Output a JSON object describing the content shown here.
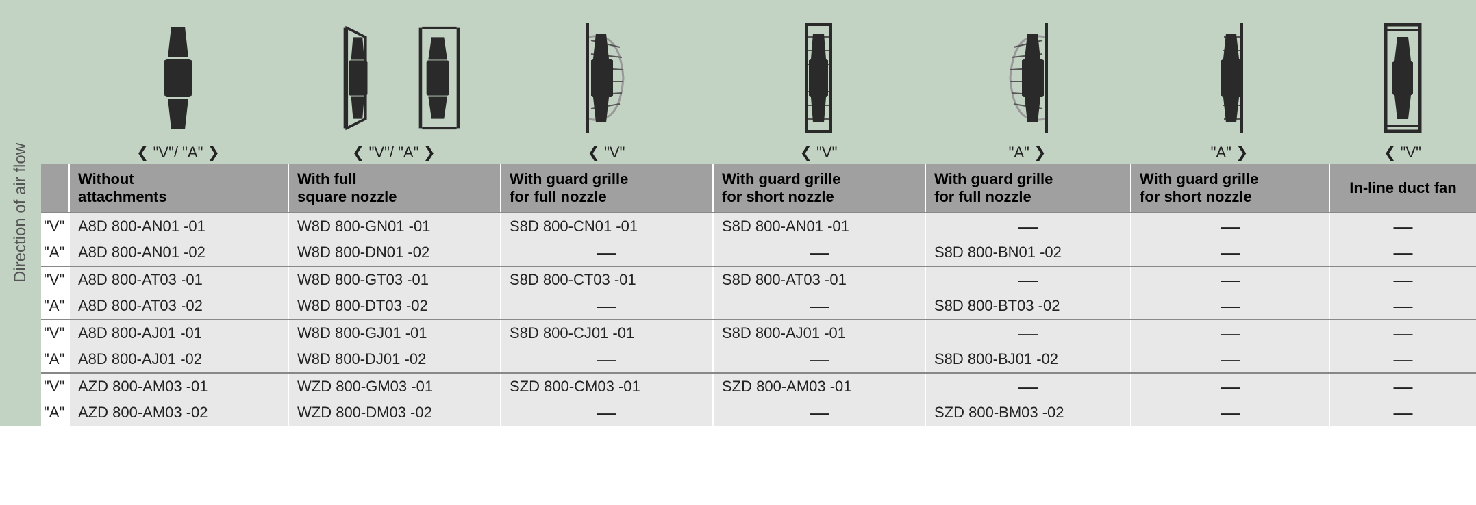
{
  "side_label": "Direction of air flow",
  "columns": [
    {
      "dir_label": "❮ \"V\"/ \"A\" ❯",
      "header": "Without\nattachments"
    },
    {
      "dir_label": "❮ \"V\"/ \"A\" ❯",
      "header": "With full\nsquare nozzle"
    },
    {
      "dir_label": "❮ \"V\"",
      "header": "With guard grille\nfor full nozzle"
    },
    {
      "dir_label": "❮ \"V\"",
      "header": "With guard grille\nfor short nozzle"
    },
    {
      "dir_label": "\"A\" ❯",
      "header": "With guard grille\nfor full nozzle"
    },
    {
      "dir_label": "\"A\" ❯",
      "header": "With guard grille\nfor short nozzle"
    },
    {
      "dir_label": "❮ \"V\"",
      "header": "In-line duct fan"
    }
  ],
  "row_labels": [
    "\"V\"",
    "\"A\"",
    "\"V\"",
    "\"A\"",
    "\"V\"",
    "\"A\"",
    "\"V\"",
    "\"A\""
  ],
  "groups": [
    [
      [
        "A8D 800-AN01  -01",
        "W8D 800-GN01  -01",
        "S8D 800-CN01  -01",
        "S8D 800-AN01  -01",
        "—",
        "—",
        "—"
      ],
      [
        "A8D 800-AN01  -02",
        "W8D 800-DN01  -02",
        "—",
        "—",
        "S8D 800-BN01  -02",
        "—",
        "—"
      ]
    ],
    [
      [
        "A8D 800-AT03  -01",
        "W8D 800-GT03  -01",
        "S8D 800-CT03  -01",
        "S8D 800-AT03  -01",
        "—",
        "—",
        "—"
      ],
      [
        "A8D 800-AT03  -02",
        "W8D 800-DT03  -02",
        "—",
        "—",
        "S8D 800-BT03  -02",
        "—",
        "—"
      ]
    ],
    [
      [
        "A8D 800-AJ01  -01",
        "W8D 800-GJ01  -01",
        "S8D 800-CJ01  -01",
        "S8D 800-AJ01  -01",
        "—",
        "—",
        "—"
      ],
      [
        "A8D 800-AJ01  -02",
        "W8D 800-DJ01  -02",
        "—",
        "—",
        "S8D 800-BJ01  -02",
        "—",
        "—"
      ]
    ],
    [
      [
        "AZD 800-AM03 -01",
        "WZD 800-GM03 -01",
        "SZD 800-CM03 -01",
        "SZD 800-AM03 -01",
        "—",
        "—",
        "—"
      ],
      [
        "AZD 800-AM03 -02",
        "WZD 800-DM03 -02",
        "—",
        "—",
        "SZD 800-BM03 -02",
        "—",
        "—"
      ]
    ]
  ],
  "styling": {
    "bg_header_green": "#c3d3c3",
    "bg_header_gray": "#a0a0a0",
    "bg_cell": "#e8e8e8",
    "border_color": "#ffffff",
    "text_color": "#222222",
    "font_size_main": 22,
    "font_size_side": 24,
    "icon_color": "#2a2a2a"
  }
}
